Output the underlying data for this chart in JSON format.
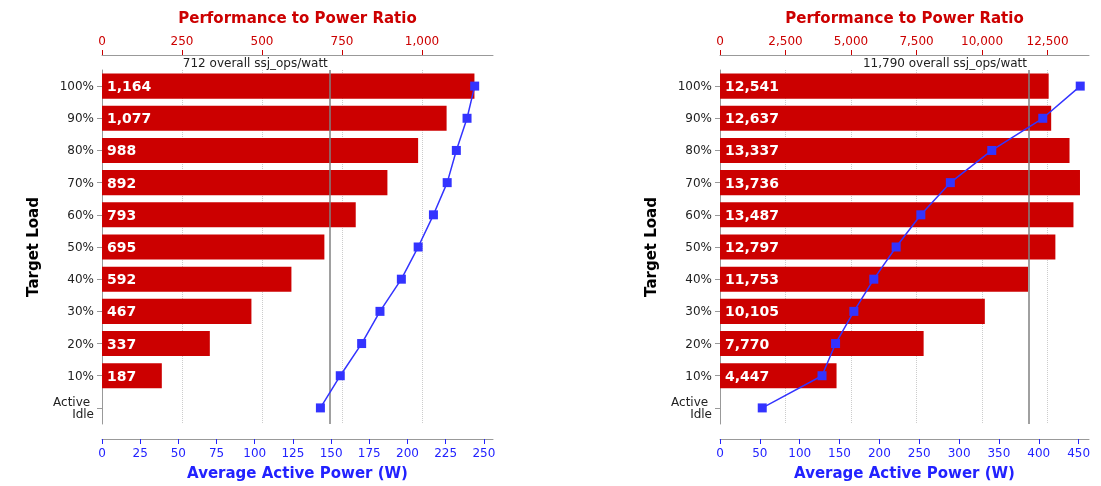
{
  "chart_data": [
    {
      "type": "bar",
      "orientation": "horizontal",
      "x2label": "Performance to Power Ratio",
      "xlabel": "Average Active Power (W)",
      "ylabel": "Target Load",
      "categories": [
        "100%",
        "90%",
        "80%",
        "70%",
        "60%",
        "50%",
        "40%",
        "30%",
        "20%",
        "10%",
        "Active Idle"
      ],
      "series": [
        {
          "type": "bar",
          "axis": "x2",
          "color": "#cc0000",
          "values": [
            1164,
            1077,
            988,
            892,
            793,
            695,
            592,
            467,
            337,
            187,
            null
          ],
          "value_labels": [
            "1,164",
            "1,077",
            "988",
            "892",
            "793",
            "695",
            "592",
            "467",
            "337",
            "187",
            null
          ]
        },
        {
          "type": "line",
          "color": "#3333ff",
          "marker": "square",
          "values": [
            244,
            239,
            232,
            226,
            217,
            207,
            196,
            182,
            170,
            156,
            143
          ]
        }
      ],
      "xlim": [
        0,
        256
      ],
      "xticks": [
        0,
        25,
        50,
        75,
        100,
        125,
        150,
        175,
        200,
        225,
        250
      ],
      "x2lim": [
        0,
        1222
      ],
      "x2ticks": [
        0,
        250,
        500,
        750,
        {
          "value": 1000,
          "label": "1,000"
        }
      ],
      "ref_lines": [
        {
          "axis": "x2",
          "value": 712,
          "label": "712 overall ssj_ops/watt",
          "color": "#808080"
        }
      ],
      "grid": "x"
    },
    {
      "type": "bar",
      "orientation": "horizontal",
      "x2label": "Performance to Power Ratio",
      "xlabel": "Average Active Power (W)",
      "ylabel": "Target Load",
      "categories": [
        "100%",
        "90%",
        "80%",
        "70%",
        "60%",
        "50%",
        "40%",
        "30%",
        "20%",
        "10%",
        "Active Idle"
      ],
      "series": [
        {
          "type": "bar",
          "axis": "x2",
          "color": "#cc0000",
          "values": [
            12541,
            12637,
            13337,
            13736,
            13487,
            12797,
            11753,
            10105,
            7770,
            4447,
            null
          ],
          "value_labels": [
            "12,541",
            "12,637",
            "13,337",
            "13,736",
            "13,487",
            "12,797",
            "11,753",
            "10,105",
            "7,770",
            "4,447",
            null
          ]
        },
        {
          "type": "line",
          "color": "#3333ff",
          "marker": "square",
          "values": [
            452,
            405,
            341,
            289,
            252,
            221,
            193,
            168,
            145,
            128,
            53
          ]
        }
      ],
      "xlim": [
        0,
        463
      ],
      "xticks": [
        0,
        50,
        100,
        150,
        200,
        250,
        300,
        350,
        400,
        450
      ],
      "x2lim": [
        0,
        14080
      ],
      "x2ticks": [
        0,
        {
          "value": 2500,
          "label": "2,500"
        },
        {
          "value": 5000,
          "label": "5,000"
        },
        {
          "value": 7500,
          "label": "7,500"
        },
        {
          "value": 10000,
          "label": "10,000"
        },
        {
          "value": 12500,
          "label": "12,500"
        }
      ],
      "ref_lines": [
        {
          "axis": "x2",
          "value": 11790,
          "label": "11,790 overall ssj_ops/watt",
          "color": "#808080"
        }
      ],
      "grid": "x"
    }
  ]
}
